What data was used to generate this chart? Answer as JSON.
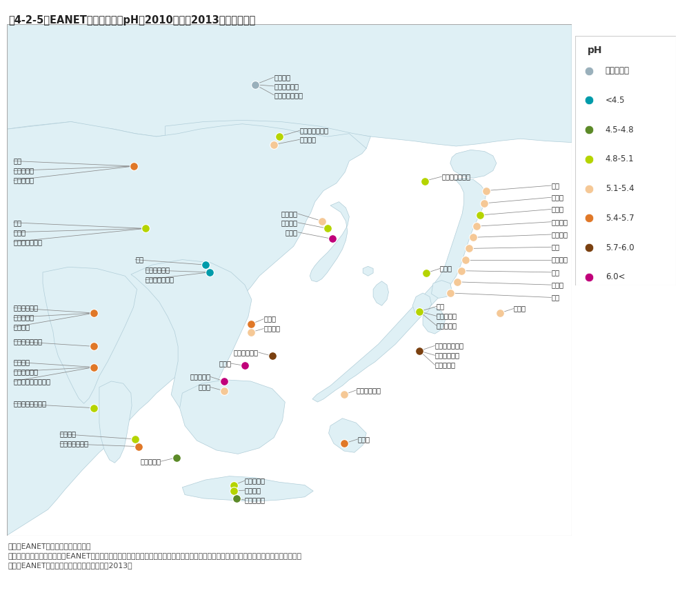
{
  "title": "図4-2-5　EANET地域の降水中pH（2010年から2013年の平均値）",
  "sea_color": "#c5e5ef",
  "land_color": "#dff0f5",
  "figure_bg": "#ffffff",
  "border_color": "#999999",
  "legend": {
    "title": "pH",
    "entries": [
      {
        "label": "データなし",
        "color": "#9ab0bb"
      },
      {
        "label": "<4.5",
        "color": "#009baa"
      },
      {
        "label": "4.5-4.8",
        "color": "#5c8a28"
      },
      {
        "label": "4.8-5.1",
        "color": "#b5d400"
      },
      {
        "label": "5.1-5.4",
        "color": "#f5c896"
      },
      {
        "label": "5.4-5.7",
        "color": "#e07828"
      },
      {
        "label": "5.7-6.0",
        "color": "#7a4010"
      },
      {
        "label": "6.0<",
        "color": "#c0007a"
      }
    ]
  }
}
